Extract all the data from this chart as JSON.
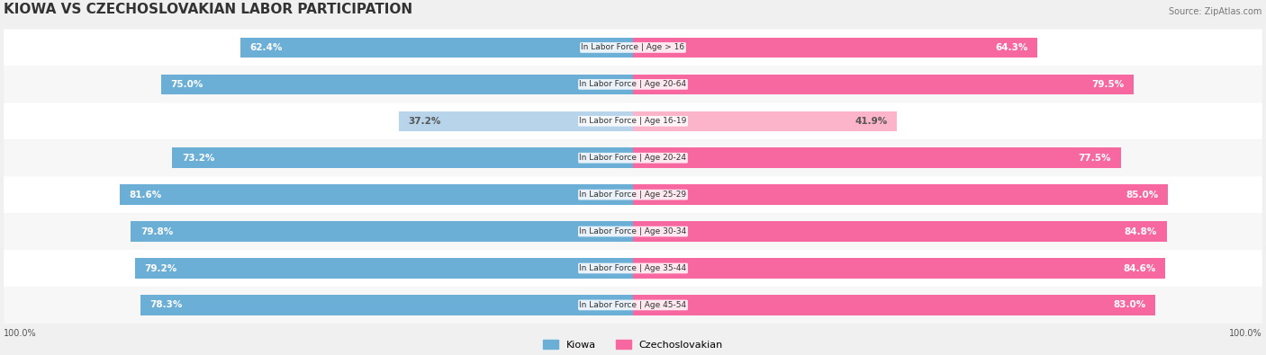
{
  "title": "KIOWA VS CZECHOSLOVAKIAN LABOR PARTICIPATION",
  "source": "Source: ZipAtlas.com",
  "categories": [
    "In Labor Force | Age > 16",
    "In Labor Force | Age 20-64",
    "In Labor Force | Age 16-19",
    "In Labor Force | Age 20-24",
    "In Labor Force | Age 25-29",
    "In Labor Force | Age 30-34",
    "In Labor Force | Age 35-44",
    "In Labor Force | Age 45-54"
  ],
  "kiowa_values": [
    62.4,
    75.0,
    37.2,
    73.2,
    81.6,
    79.8,
    79.2,
    78.3
  ],
  "czech_values": [
    64.3,
    79.5,
    41.9,
    77.5,
    85.0,
    84.8,
    84.6,
    83.0
  ],
  "kiowa_color": "#6baed6",
  "kiowa_color_light": "#b8d4ea",
  "czech_color": "#f768a1",
  "czech_color_light": "#fbb4c9",
  "bar_height": 0.55,
  "background_color": "#f0f0f0",
  "row_bg_color": "#ffffff",
  "label_fontsize": 7.5,
  "title_fontsize": 11,
  "max_val": 100.0,
  "legend_kiowa": "Kiowa",
  "legend_czech": "Czechoslovakian"
}
